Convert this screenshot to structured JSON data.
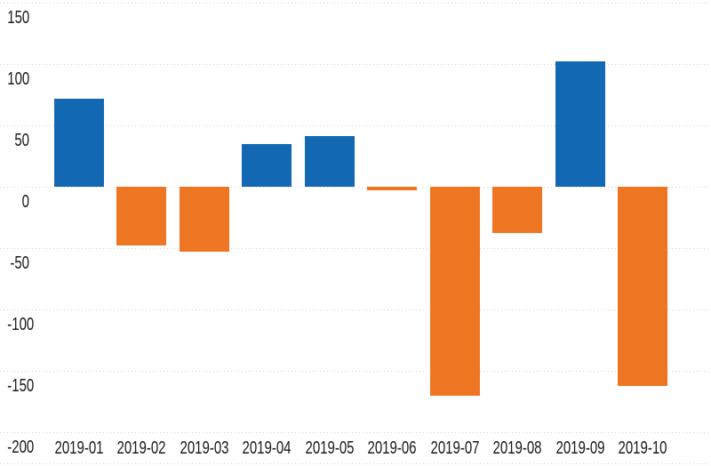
{
  "chart_data": {
    "type": "bar",
    "title": "",
    "xlabel": "",
    "ylabel": "",
    "categories": [
      "2019-01",
      "2019-02",
      "2019-03",
      "2019-04",
      "2019-05",
      "2019-06",
      "2019-07",
      "2019-08",
      "2019-09",
      "2019-10"
    ],
    "values": [
      72,
      -48,
      -53,
      35,
      41,
      -3,
      -170,
      -38,
      102,
      -162
    ],
    "ylim": [
      -200,
      150
    ],
    "ytick_interval": 50,
    "ytick_labels": [
      "150",
      "100",
      "50",
      "0",
      "-50",
      "-100",
      "-150",
      "-200"
    ],
    "ytick_values": [
      150,
      100,
      50,
      0,
      -50,
      -100,
      -150,
      -200
    ],
    "grid": "horizontal-dotted",
    "legend": "none",
    "colors": {
      "positive_bar": "#1268B2",
      "negative_bar": "#EE7623",
      "gridline": "#D2D2D2",
      "label_text": "#1A1A1A",
      "background": "#FFFFFF"
    }
  }
}
